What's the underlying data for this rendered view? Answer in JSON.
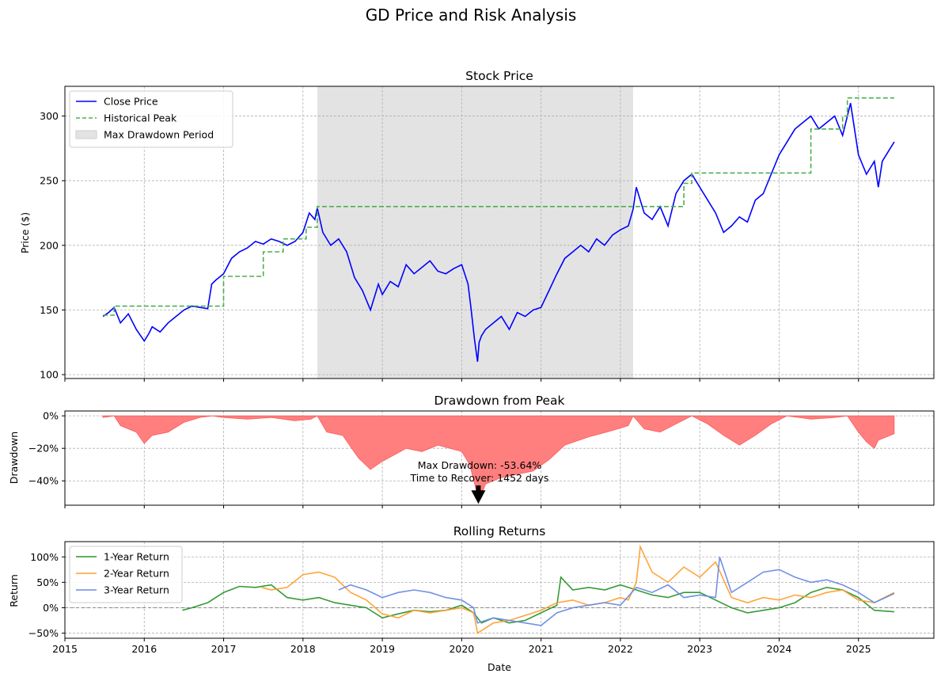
{
  "figure_title": "GD Price and Risk Analysis",
  "colors": {
    "close": "#0000ff",
    "peak": "#4caf50",
    "drawdown_fill": "#ff7f7f",
    "drawdown_edge": "#ff5a5a",
    "shade": "#e3e3e3",
    "ret1": "#2a962a",
    "ret2": "#ff9f2f",
    "ret3": "#6a8ae6",
    "zero_line": "#888888"
  },
  "chart_data": [
    {
      "type": "line",
      "title": "Stock Price",
      "xlabel": "",
      "ylabel": "Price ($)",
      "xlim": [
        2015.0,
        2025.95
      ],
      "ylim": [
        97,
        323
      ],
      "x_ticks": [
        2015,
        2016,
        2017,
        2018,
        2019,
        2020,
        2021,
        2022,
        2023,
        2024,
        2025
      ],
      "y_ticks": [
        100,
        150,
        200,
        250,
        300
      ],
      "grid": true,
      "legend": [
        "Close Price",
        "Historical Peak",
        "Max Drawdown Period"
      ],
      "legend_position": "upper-left",
      "max_drawdown_period": [
        2018.18,
        2022.16
      ],
      "series": [
        {
          "name": "Close Price",
          "x": [
            2015.48,
            2015.55,
            2015.62,
            2015.7,
            2015.8,
            2015.9,
            2016.0,
            2016.06,
            2016.1,
            2016.2,
            2016.3,
            2016.4,
            2016.5,
            2016.6,
            2016.7,
            2016.8,
            2016.85,
            2016.9,
            2017.0,
            2017.1,
            2017.2,
            2017.3,
            2017.4,
            2017.5,
            2017.6,
            2017.7,
            2017.8,
            2017.9,
            2018.0,
            2018.08,
            2018.15,
            2018.18,
            2018.25,
            2018.35,
            2018.45,
            2018.55,
            2018.65,
            2018.75,
            2018.85,
            2018.95,
            2019.0,
            2019.1,
            2019.2,
            2019.3,
            2019.4,
            2019.5,
            2019.6,
            2019.7,
            2019.8,
            2019.9,
            2020.0,
            2020.08,
            2020.12,
            2020.16,
            2020.2,
            2020.22,
            2020.25,
            2020.3,
            2020.4,
            2020.5,
            2020.6,
            2020.7,
            2020.8,
            2020.9,
            2021.0,
            2021.1,
            2021.2,
            2021.3,
            2021.4,
            2021.5,
            2021.6,
            2021.7,
            2021.8,
            2021.9,
            2022.0,
            2022.1,
            2022.16,
            2022.2,
            2022.3,
            2022.4,
            2022.5,
            2022.6,
            2022.7,
            2022.8,
            2022.9,
            2023.0,
            2023.1,
            2023.2,
            2023.3,
            2023.4,
            2023.5,
            2023.6,
            2023.7,
            2023.8,
            2023.9,
            2024.0,
            2024.1,
            2024.2,
            2024.3,
            2024.4,
            2024.5,
            2024.6,
            2024.7,
            2024.8,
            2024.9,
            2025.0,
            2025.1,
            2025.2,
            2025.25,
            2025.3,
            2025.4,
            2025.45
          ],
          "values": [
            145,
            148,
            152,
            140,
            147,
            135,
            126,
            132,
            137,
            133,
            140,
            145,
            150,
            153,
            152,
            151,
            170,
            173,
            178,
            190,
            195,
            198,
            203,
            201,
            205,
            203,
            200,
            203,
            210,
            225,
            220,
            229,
            210,
            200,
            205,
            195,
            175,
            165,
            150,
            170,
            162,
            172,
            168,
            185,
            178,
            183,
            188,
            180,
            178,
            182,
            185,
            170,
            150,
            128,
            110,
            125,
            130,
            135,
            140,
            145,
            135,
            148,
            145,
            150,
            152,
            165,
            178,
            190,
            195,
            200,
            195,
            205,
            200,
            208,
            212,
            215,
            228,
            245,
            225,
            220,
            230,
            215,
            240,
            250,
            255,
            245,
            235,
            225,
            210,
            215,
            222,
            218,
            235,
            240,
            255,
            270,
            280,
            290,
            295,
            300,
            290,
            295,
            300,
            285,
            310,
            270,
            255,
            265,
            245,
            265,
            275,
            280
          ]
        },
        {
          "name": "Historical Peak",
          "x": [
            2015.48,
            2015.62,
            2016.86,
            2017.0,
            2017.5,
            2017.75,
            2018.04,
            2018.18,
            2022.16,
            2022.8,
            2022.9,
            2024.0,
            2024.4,
            2024.8,
            2024.86,
            2025.45
          ],
          "values": [
            146,
            153,
            153,
            176,
            195,
            205,
            214,
            230,
            230,
            248,
            256,
            256,
            290,
            300,
            314,
            314
          ]
        }
      ]
    },
    {
      "type": "area",
      "title": "Drawdown from Peak",
      "xlabel": "",
      "ylabel": "Drawdown",
      "xlim": [
        2015.0,
        2025.95
      ],
      "ylim": [
        -0.55,
        0.03
      ],
      "y_ticks": [
        0,
        -0.2,
        -0.4
      ],
      "y_tick_labels": [
        "0%",
        "−20%",
        "−40%"
      ],
      "grid": true,
      "annotation": {
        "text_line1": "Max Drawdown: -53.64%",
        "text_line2": "Time to Recover: 1452 days",
        "x": 2020.21,
        "y": -0.5364
      },
      "series": [
        {
          "name": "Drawdown",
          "x": [
            2015.48,
            2015.62,
            2015.7,
            2015.9,
            2016.0,
            2016.1,
            2016.3,
            2016.5,
            2016.7,
            2016.86,
            2017.0,
            2017.3,
            2017.6,
            2017.9,
            2018.1,
            2018.18,
            2018.3,
            2018.5,
            2018.7,
            2018.85,
            2019.0,
            2019.3,
            2019.5,
            2019.7,
            2020.0,
            2020.1,
            2020.18,
            2020.21,
            2020.3,
            2020.5,
            2020.7,
            2020.9,
            2021.1,
            2021.3,
            2021.6,
            2021.9,
            2022.1,
            2022.16,
            2022.3,
            2022.5,
            2022.7,
            2022.9,
            2023.1,
            2023.3,
            2023.5,
            2023.7,
            2023.9,
            2024.1,
            2024.4,
            2024.7,
            2024.86,
            2025.0,
            2025.1,
            2025.2,
            2025.25,
            2025.3,
            2025.45
          ],
          "values": [
            -0.01,
            0.0,
            -0.06,
            -0.1,
            -0.17,
            -0.12,
            -0.1,
            -0.04,
            -0.01,
            0.0,
            -0.01,
            -0.02,
            -0.01,
            -0.03,
            -0.02,
            0.0,
            -0.1,
            -0.12,
            -0.26,
            -0.33,
            -0.28,
            -0.2,
            -0.22,
            -0.18,
            -0.22,
            -0.3,
            -0.45,
            -0.5364,
            -0.42,
            -0.38,
            -0.36,
            -0.34,
            -0.27,
            -0.18,
            -0.13,
            -0.09,
            -0.06,
            0.0,
            -0.08,
            -0.1,
            -0.05,
            0.0,
            -0.05,
            -0.12,
            -0.18,
            -0.12,
            -0.05,
            0.0,
            -0.02,
            -0.01,
            0.0,
            -0.1,
            -0.16,
            -0.2,
            -0.15,
            -0.14,
            -0.11
          ]
        }
      ]
    },
    {
      "type": "line",
      "title": "Rolling Returns",
      "xlabel": "Date",
      "ylabel": "Return",
      "xlim": [
        2015.0,
        2025.95
      ],
      "ylim": [
        -0.6,
        1.3
      ],
      "x_ticks": [
        2015,
        2016,
        2017,
        2018,
        2019,
        2020,
        2021,
        2022,
        2023,
        2024,
        2025
      ],
      "y_ticks": [
        1.0,
        0.5,
        0.0,
        -0.5
      ],
      "y_tick_labels": [
        "100%",
        "50%",
        "0%",
        "−50%"
      ],
      "grid": true,
      "legend": [
        "1-Year Return",
        "2-Year Return",
        "3-Year Return"
      ],
      "legend_position": "upper-left",
      "series": [
        {
          "name": "1-Year Return",
          "x": [
            2016.48,
            2016.6,
            2016.8,
            2017.0,
            2017.2,
            2017.4,
            2017.6,
            2017.8,
            2018.0,
            2018.2,
            2018.4,
            2018.6,
            2018.8,
            2019.0,
            2019.2,
            2019.4,
            2019.6,
            2019.8,
            2020.0,
            2020.15,
            2020.25,
            2020.4,
            2020.6,
            2020.8,
            2021.0,
            2021.2,
            2021.25,
            2021.4,
            2021.6,
            2021.8,
            2022.0,
            2022.2,
            2022.4,
            2022.6,
            2022.8,
            2023.0,
            2023.2,
            2023.4,
            2023.6,
            2023.8,
            2024.0,
            2024.2,
            2024.4,
            2024.6,
            2024.8,
            2025.0,
            2025.2,
            2025.45
          ],
          "values": [
            -0.05,
            0.0,
            0.1,
            0.3,
            0.42,
            0.4,
            0.45,
            0.2,
            0.15,
            0.2,
            0.1,
            0.05,
            0.0,
            -0.2,
            -0.12,
            -0.05,
            -0.08,
            -0.05,
            0.05,
            -0.1,
            -0.3,
            -0.2,
            -0.3,
            -0.25,
            -0.1,
            0.05,
            0.6,
            0.35,
            0.4,
            0.35,
            0.45,
            0.35,
            0.25,
            0.2,
            0.3,
            0.3,
            0.15,
            0.0,
            -0.1,
            -0.05,
            0.0,
            0.1,
            0.3,
            0.4,
            0.35,
            0.2,
            -0.05,
            -0.08
          ]
        },
        {
          "name": "2-Year Return",
          "x": [
            2017.48,
            2017.6,
            2017.8,
            2018.0,
            2018.2,
            2018.4,
            2018.6,
            2018.8,
            2019.0,
            2019.2,
            2019.4,
            2019.6,
            2019.8,
            2020.0,
            2020.15,
            2020.2,
            2020.4,
            2020.6,
            2020.8,
            2021.0,
            2021.2,
            2021.4,
            2021.6,
            2021.8,
            2022.0,
            2022.1,
            2022.2,
            2022.25,
            2022.4,
            2022.6,
            2022.8,
            2023.0,
            2023.2,
            2023.4,
            2023.6,
            2023.8,
            2024.0,
            2024.2,
            2024.4,
            2024.6,
            2024.8,
            2025.0,
            2025.2,
            2025.45
          ],
          "values": [
            0.4,
            0.35,
            0.4,
            0.65,
            0.7,
            0.6,
            0.3,
            0.15,
            -0.12,
            -0.2,
            -0.05,
            -0.1,
            -0.05,
            0.0,
            -0.1,
            -0.5,
            -0.3,
            -0.25,
            -0.15,
            -0.05,
            0.1,
            0.15,
            0.05,
            0.1,
            0.2,
            0.15,
            0.5,
            1.2,
            0.7,
            0.5,
            0.8,
            0.6,
            0.9,
            0.2,
            0.1,
            0.2,
            0.15,
            0.25,
            0.2,
            0.3,
            0.35,
            0.15,
            0.1,
            0.3
          ]
        },
        {
          "name": "3-Year Return",
          "x": [
            2018.45,
            2018.6,
            2018.8,
            2019.0,
            2019.2,
            2019.4,
            2019.6,
            2019.8,
            2020.0,
            2020.15,
            2020.2,
            2020.4,
            2020.6,
            2020.8,
            2021.0,
            2021.2,
            2021.4,
            2021.6,
            2021.8,
            2022.0,
            2022.2,
            2022.4,
            2022.6,
            2022.8,
            2023.0,
            2023.2,
            2023.25,
            2023.4,
            2023.6,
            2023.8,
            2024.0,
            2024.2,
            2024.4,
            2024.6,
            2024.8,
            2025.0,
            2025.2,
            2025.45
          ],
          "values": [
            0.35,
            0.45,
            0.35,
            0.2,
            0.3,
            0.35,
            0.3,
            0.2,
            0.15,
            0.0,
            -0.3,
            -0.2,
            -0.25,
            -0.3,
            -0.35,
            -0.1,
            0.0,
            0.05,
            0.1,
            0.05,
            0.4,
            0.3,
            0.45,
            0.2,
            0.25,
            0.2,
            1.0,
            0.3,
            0.5,
            0.7,
            0.75,
            0.6,
            0.5,
            0.55,
            0.45,
            0.3,
            0.1,
            0.28
          ]
        }
      ]
    }
  ]
}
